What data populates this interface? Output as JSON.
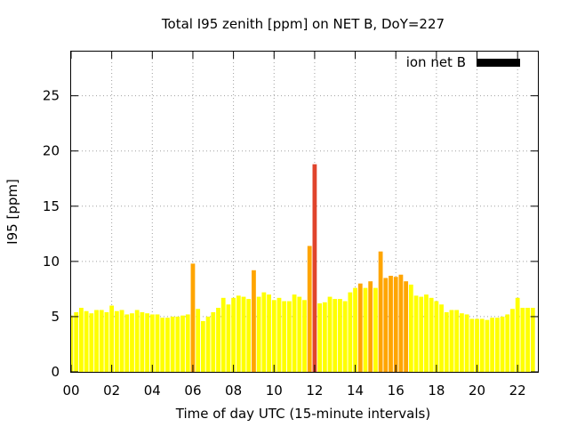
{
  "chart_data": {
    "type": "bar",
    "title": "Total I95 zenith [ppm] on NET B, DoY=227",
    "xlabel": "Time of day UTC (15-minute intervals)",
    "ylabel": "I95 [ppm]",
    "ylim": [
      0,
      29
    ],
    "xlim": [
      0,
      23
    ],
    "yticks": [
      0,
      5,
      10,
      15,
      20,
      25
    ],
    "yticklabels": [
      "0",
      "5",
      "10",
      "15",
      "20",
      "25"
    ],
    "xticks": [
      0,
      2,
      4,
      6,
      8,
      10,
      12,
      14,
      16,
      18,
      20,
      22
    ],
    "xticklabels": [
      "00",
      "02",
      "04",
      "06",
      "08",
      "10",
      "12",
      "14",
      "16",
      "18",
      "20",
      "22"
    ],
    "grid": true,
    "legend": {
      "position": "top-right",
      "entries": [
        {
          "name": "ion net B",
          "color": "#000000"
        }
      ]
    },
    "bar_width_hours": 0.21,
    "colors": {
      "low": "#ffff00",
      "mid": "#ffa500",
      "high": "#e0442c"
    },
    "x": [
      0.0,
      0.25,
      0.5,
      0.75,
      1.0,
      1.25,
      1.5,
      1.75,
      2.0,
      2.25,
      2.5,
      2.75,
      3.0,
      3.25,
      3.5,
      3.75,
      4.0,
      4.25,
      4.5,
      4.75,
      5.0,
      5.25,
      5.5,
      5.75,
      6.0,
      6.25,
      6.5,
      6.75,
      7.0,
      7.25,
      7.5,
      7.75,
      8.0,
      8.25,
      8.5,
      8.75,
      9.0,
      9.25,
      9.5,
      9.75,
      10.0,
      10.25,
      10.5,
      10.75,
      11.0,
      11.25,
      11.5,
      11.75,
      12.0,
      12.25,
      12.5,
      12.75,
      13.0,
      13.25,
      13.5,
      13.75,
      14.0,
      14.25,
      14.5,
      14.75,
      15.0,
      15.25,
      15.5,
      15.75,
      16.0,
      16.25,
      16.5,
      16.75,
      17.0,
      17.25,
      17.5,
      17.75,
      18.0,
      18.25,
      18.5,
      18.75,
      19.0,
      19.25,
      19.5,
      19.75,
      20.0,
      20.25,
      20.5,
      20.75,
      21.0,
      21.25,
      21.5,
      21.75,
      22.0,
      22.25,
      22.5,
      22.75
    ],
    "values": [
      5.1,
      5.4,
      5.8,
      5.5,
      5.3,
      5.6,
      5.6,
      5.4,
      6.0,
      5.5,
      5.6,
      5.2,
      5.3,
      5.6,
      5.4,
      5.3,
      5.2,
      5.2,
      4.9,
      4.9,
      5.0,
      5.0,
      5.1,
      5.2,
      9.8,
      5.7,
      4.6,
      5.0,
      5.4,
      5.8,
      6.7,
      6.1,
      6.7,
      6.9,
      6.8,
      6.6,
      9.2,
      6.8,
      7.2,
      7.0,
      6.5,
      6.7,
      6.4,
      6.4,
      7.0,
      6.8,
      6.5,
      11.4,
      18.8,
      6.2,
      6.3,
      6.8,
      6.6,
      6.6,
      6.4,
      7.2,
      7.6,
      8.0,
      7.6,
      8.2,
      7.6,
      10.9,
      8.5,
      8.7,
      8.6,
      8.8,
      8.2,
      7.9,
      6.9,
      6.8,
      7.0,
      6.7,
      6.4,
      6.1,
      5.4,
      5.6,
      5.6,
      5.3,
      5.2,
      4.8,
      4.8,
      4.8,
      4.7,
      4.9,
      4.9,
      5.0,
      5.2,
      5.7,
      6.7,
      5.8,
      5.8,
      5.8
    ],
    "categories": [
      "low",
      "low",
      "low",
      "low",
      "low",
      "low",
      "low",
      "low",
      "low",
      "low",
      "low",
      "low",
      "low",
      "low",
      "low",
      "low",
      "low",
      "low",
      "low",
      "low",
      "low",
      "low",
      "low",
      "low",
      "mid",
      "low",
      "low",
      "low",
      "low",
      "low",
      "low",
      "low",
      "low",
      "low",
      "low",
      "low",
      "mid",
      "low",
      "low",
      "low",
      "low",
      "low",
      "low",
      "low",
      "low",
      "low",
      "low",
      "mid",
      "high",
      "low",
      "low",
      "low",
      "low",
      "low",
      "low",
      "low",
      "low",
      "mid",
      "low",
      "mid",
      "low",
      "mid",
      "mid",
      "mid",
      "mid",
      "mid",
      "mid",
      "low",
      "low",
      "low",
      "low",
      "low",
      "low",
      "low",
      "low",
      "low",
      "low",
      "low",
      "low",
      "low",
      "low",
      "low",
      "low",
      "low",
      "low",
      "low",
      "low",
      "low",
      "low",
      "low",
      "low",
      "low"
    ]
  }
}
